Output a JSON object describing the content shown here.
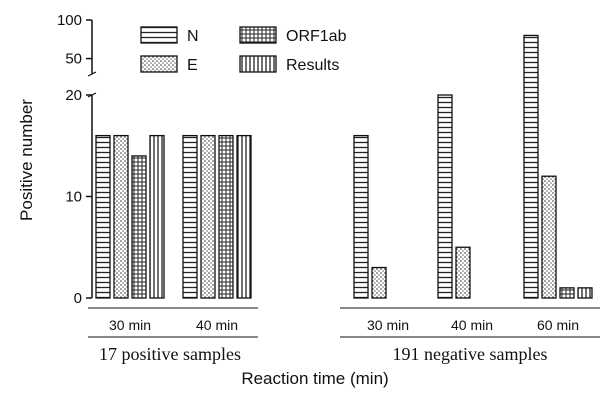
{
  "chart_data": {
    "type": "bar",
    "ylabel": "Positive number",
    "xlabel": "Reaction time (min)",
    "y_axis": {
      "lower_range": [
        0,
        20
      ],
      "lower_ticks": [
        0,
        10,
        20
      ],
      "upper_range": [
        30,
        100
      ],
      "upper_ticks": [
        50,
        100
      ],
      "break": true
    },
    "series": [
      {
        "name": "N",
        "pattern": "horizontal-lines"
      },
      {
        "name": "E",
        "pattern": "dots"
      },
      {
        "name": "ORF1ab",
        "pattern": "grid"
      },
      {
        "name": "Results",
        "pattern": "vertical-lines"
      }
    ],
    "groups": [
      {
        "label": "17 positive samples",
        "categories": [
          {
            "label": "30 min",
            "values": [
              16,
              16,
              14,
              16
            ]
          },
          {
            "label": "40 min",
            "values": [
              16,
              16,
              16,
              16
            ]
          }
        ]
      },
      {
        "label": "191 negative samples",
        "categories": [
          {
            "label": "30 min",
            "values": [
              16,
              3,
              0,
              0
            ]
          },
          {
            "label": "40 min",
            "values": [
              20,
              5,
              0,
              0
            ]
          },
          {
            "label": "60 min",
            "values": [
              80,
              12,
              1,
              1
            ]
          }
        ]
      }
    ],
    "legend_position": "top-left",
    "grid": false
  }
}
